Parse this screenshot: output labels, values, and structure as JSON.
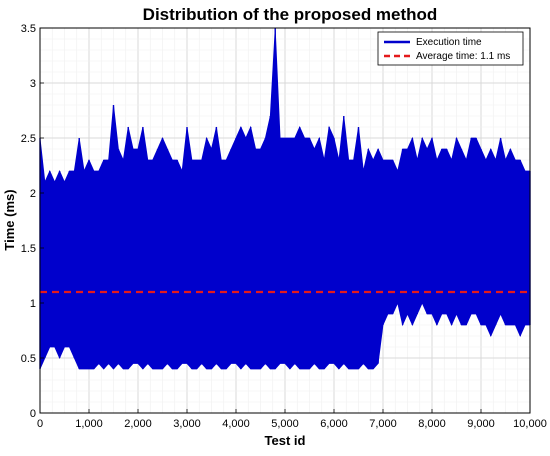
{
  "chart_data": {
    "type": "line",
    "title": "Distribution of the proposed method",
    "xlabel": "Test id",
    "ylabel": "Time (ms)",
    "xlim": [
      0,
      10000
    ],
    "ylim": [
      0,
      3.5
    ],
    "grid": true,
    "legend_position": "top-right",
    "x_ticks": [
      {
        "value": 0,
        "label": "0"
      },
      {
        "value": 1000,
        "label": "1,000"
      },
      {
        "value": 2000,
        "label": "2,000"
      },
      {
        "value": 3000,
        "label": "3,000"
      },
      {
        "value": 4000,
        "label": "4,000"
      },
      {
        "value": 5000,
        "label": "5,000"
      },
      {
        "value": 6000,
        "label": "6,000"
      },
      {
        "value": 7000,
        "label": "7,000"
      },
      {
        "value": 8000,
        "label": "8,000"
      },
      {
        "value": 9000,
        "label": "9,000"
      },
      {
        "value": 10000,
        "label": "10,000"
      }
    ],
    "y_ticks": [
      {
        "value": 0,
        "label": "0"
      },
      {
        "value": 0.5,
        "label": "0.5"
      },
      {
        "value": 1,
        "label": "1"
      },
      {
        "value": 1.5,
        "label": "1.5"
      },
      {
        "value": 2,
        "label": "2"
      },
      {
        "value": 2.5,
        "label": "2.5"
      },
      {
        "value": 3,
        "label": "3"
      },
      {
        "value": 3.5,
        "label": "3.5"
      }
    ],
    "series": [
      {
        "name": "Execution time",
        "color": "#0000cc",
        "style": "solid",
        "x": [
          0,
          100,
          200,
          300,
          400,
          500,
          600,
          700,
          800,
          900,
          1000,
          1100,
          1200,
          1300,
          1400,
          1500,
          1600,
          1700,
          1800,
          1900,
          2000,
          2100,
          2200,
          2300,
          2400,
          2500,
          2600,
          2700,
          2800,
          2900,
          3000,
          3100,
          3200,
          3300,
          3400,
          3500,
          3600,
          3700,
          3800,
          3900,
          4000,
          4100,
          4200,
          4300,
          4400,
          4500,
          4600,
          4700,
          4800,
          4900,
          5000,
          5100,
          5200,
          5300,
          5400,
          5500,
          5600,
          5700,
          5800,
          5900,
          6000,
          6100,
          6200,
          6300,
          6400,
          6500,
          6600,
          6700,
          6800,
          6900,
          7000,
          7100,
          7200,
          7300,
          7400,
          7500,
          7600,
          7700,
          7800,
          7900,
          8000,
          8100,
          8200,
          8300,
          8400,
          8500,
          8600,
          8700,
          8800,
          8900,
          9000,
          9100,
          9200,
          9300,
          9400,
          9500,
          9600,
          9700,
          9800,
          9900,
          10000
        ],
        "y_max": [
          2.5,
          2.1,
          2.2,
          2.1,
          2.2,
          2.1,
          2.2,
          2.2,
          2.5,
          2.2,
          2.3,
          2.2,
          2.2,
          2.3,
          2.3,
          2.8,
          2.4,
          2.3,
          2.6,
          2.4,
          2.4,
          2.6,
          2.3,
          2.3,
          2.4,
          2.5,
          2.4,
          2.3,
          2.3,
          2.2,
          2.6,
          2.3,
          2.3,
          2.3,
          2.5,
          2.4,
          2.6,
          2.3,
          2.3,
          2.4,
          2.5,
          2.6,
          2.5,
          2.6,
          2.4,
          2.4,
          2.5,
          2.7,
          3.5,
          2.5,
          2.5,
          2.5,
          2.5,
          2.6,
          2.5,
          2.5,
          2.4,
          2.5,
          2.3,
          2.6,
          2.5,
          2.3,
          2.7,
          2.3,
          2.3,
          2.6,
          2.2,
          2.4,
          2.3,
          2.4,
          2.3,
          2.3,
          2.3,
          2.2,
          2.4,
          2.4,
          2.5,
          2.3,
          2.5,
          2.4,
          2.5,
          2.3,
          2.4,
          2.4,
          2.3,
          2.5,
          2.4,
          2.3,
          2.5,
          2.5,
          2.4,
          2.3,
          2.4,
          2.3,
          2.5,
          2.3,
          2.4,
          2.3,
          2.3,
          2.2,
          2.2
        ],
        "y_min": [
          0.4,
          0.5,
          0.6,
          0.6,
          0.5,
          0.6,
          0.6,
          0.5,
          0.4,
          0.4,
          0.4,
          0.4,
          0.45,
          0.4,
          0.45,
          0.4,
          0.45,
          0.4,
          0.4,
          0.45,
          0.45,
          0.4,
          0.45,
          0.4,
          0.4,
          0.4,
          0.45,
          0.4,
          0.4,
          0.45,
          0.45,
          0.4,
          0.4,
          0.45,
          0.4,
          0.4,
          0.45,
          0.4,
          0.4,
          0.45,
          0.45,
          0.4,
          0.45,
          0.4,
          0.4,
          0.4,
          0.45,
          0.4,
          0.4,
          0.45,
          0.45,
          0.4,
          0.45,
          0.4,
          0.4,
          0.4,
          0.45,
          0.4,
          0.4,
          0.45,
          0.45,
          0.4,
          0.45,
          0.4,
          0.4,
          0.4,
          0.45,
          0.4,
          0.4,
          0.45,
          0.8,
          0.9,
          0.9,
          1.0,
          0.8,
          0.9,
          0.8,
          0.9,
          1.0,
          0.9,
          0.9,
          0.8,
          0.9,
          0.9,
          0.8,
          0.9,
          0.8,
          0.8,
          0.9,
          0.9,
          0.8,
          0.8,
          0.7,
          0.8,
          0.9,
          0.8,
          0.8,
          0.8,
          0.7,
          0.8,
          0.8
        ]
      },
      {
        "name": "Average time: 1.1 ms",
        "color": "#e41a1c",
        "style": "dashed",
        "x": [
          0,
          10000
        ],
        "y": [
          1.1,
          1.1
        ]
      }
    ]
  }
}
